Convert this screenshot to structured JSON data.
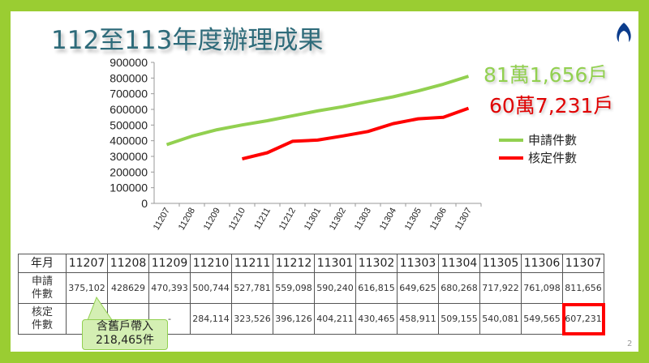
{
  "title": "112至113年度辦理成果",
  "page_number": "2",
  "annotations": {
    "apply_total": "81萬1,656戶",
    "approve_total": "60萬7,231戶"
  },
  "callout": {
    "line1": "含舊戶帶入",
    "line2": "218,465件"
  },
  "colors": {
    "apply": "#92d050",
    "approve": "#ff0000",
    "border": "#9acd32"
  },
  "chart_data": {
    "type": "line",
    "categories": [
      "11207",
      "11208",
      "11209",
      "11210",
      "11211",
      "11212",
      "11301",
      "11302",
      "11303",
      "11304",
      "11305",
      "11306",
      "11307"
    ],
    "ylim": [
      0,
      900000
    ],
    "yticks": [
      "0",
      "100000",
      "200000",
      "300000",
      "400000",
      "500000",
      "600000",
      "700000",
      "800000",
      "900000"
    ],
    "grid": false,
    "legend": "right",
    "series": [
      {
        "name": "申請件數",
        "color": "#92d050",
        "values": [
          375102,
          428629,
          470393,
          500744,
          527781,
          559098,
          590240,
          616815,
          649625,
          680268,
          717922,
          761098,
          811656
        ]
      },
      {
        "name": "核定件數",
        "color": "#ff0000",
        "values": [
          null,
          null,
          null,
          284114,
          323526,
          396126,
          404211,
          430465,
          458911,
          509155,
          540081,
          549565,
          607231
        ]
      }
    ]
  },
  "table": {
    "header_label": "年月",
    "row_labels": [
      [
        "申請",
        "件數"
      ],
      [
        "核定",
        "件數"
      ]
    ],
    "rows": [
      [
        "375,102",
        "428629",
        "470,393",
        "500,744",
        "527,781",
        "559,098",
        "590,240",
        "616,815",
        "649,625",
        "680,268",
        "717,922",
        "761,098",
        "811,656"
      ],
      [
        "",
        "",
        "-",
        "284,114",
        "323,526",
        "396,126",
        "404,211",
        "430,465",
        "458,911",
        "509,155",
        "540,081",
        "549,565",
        "607,231"
      ]
    ]
  }
}
